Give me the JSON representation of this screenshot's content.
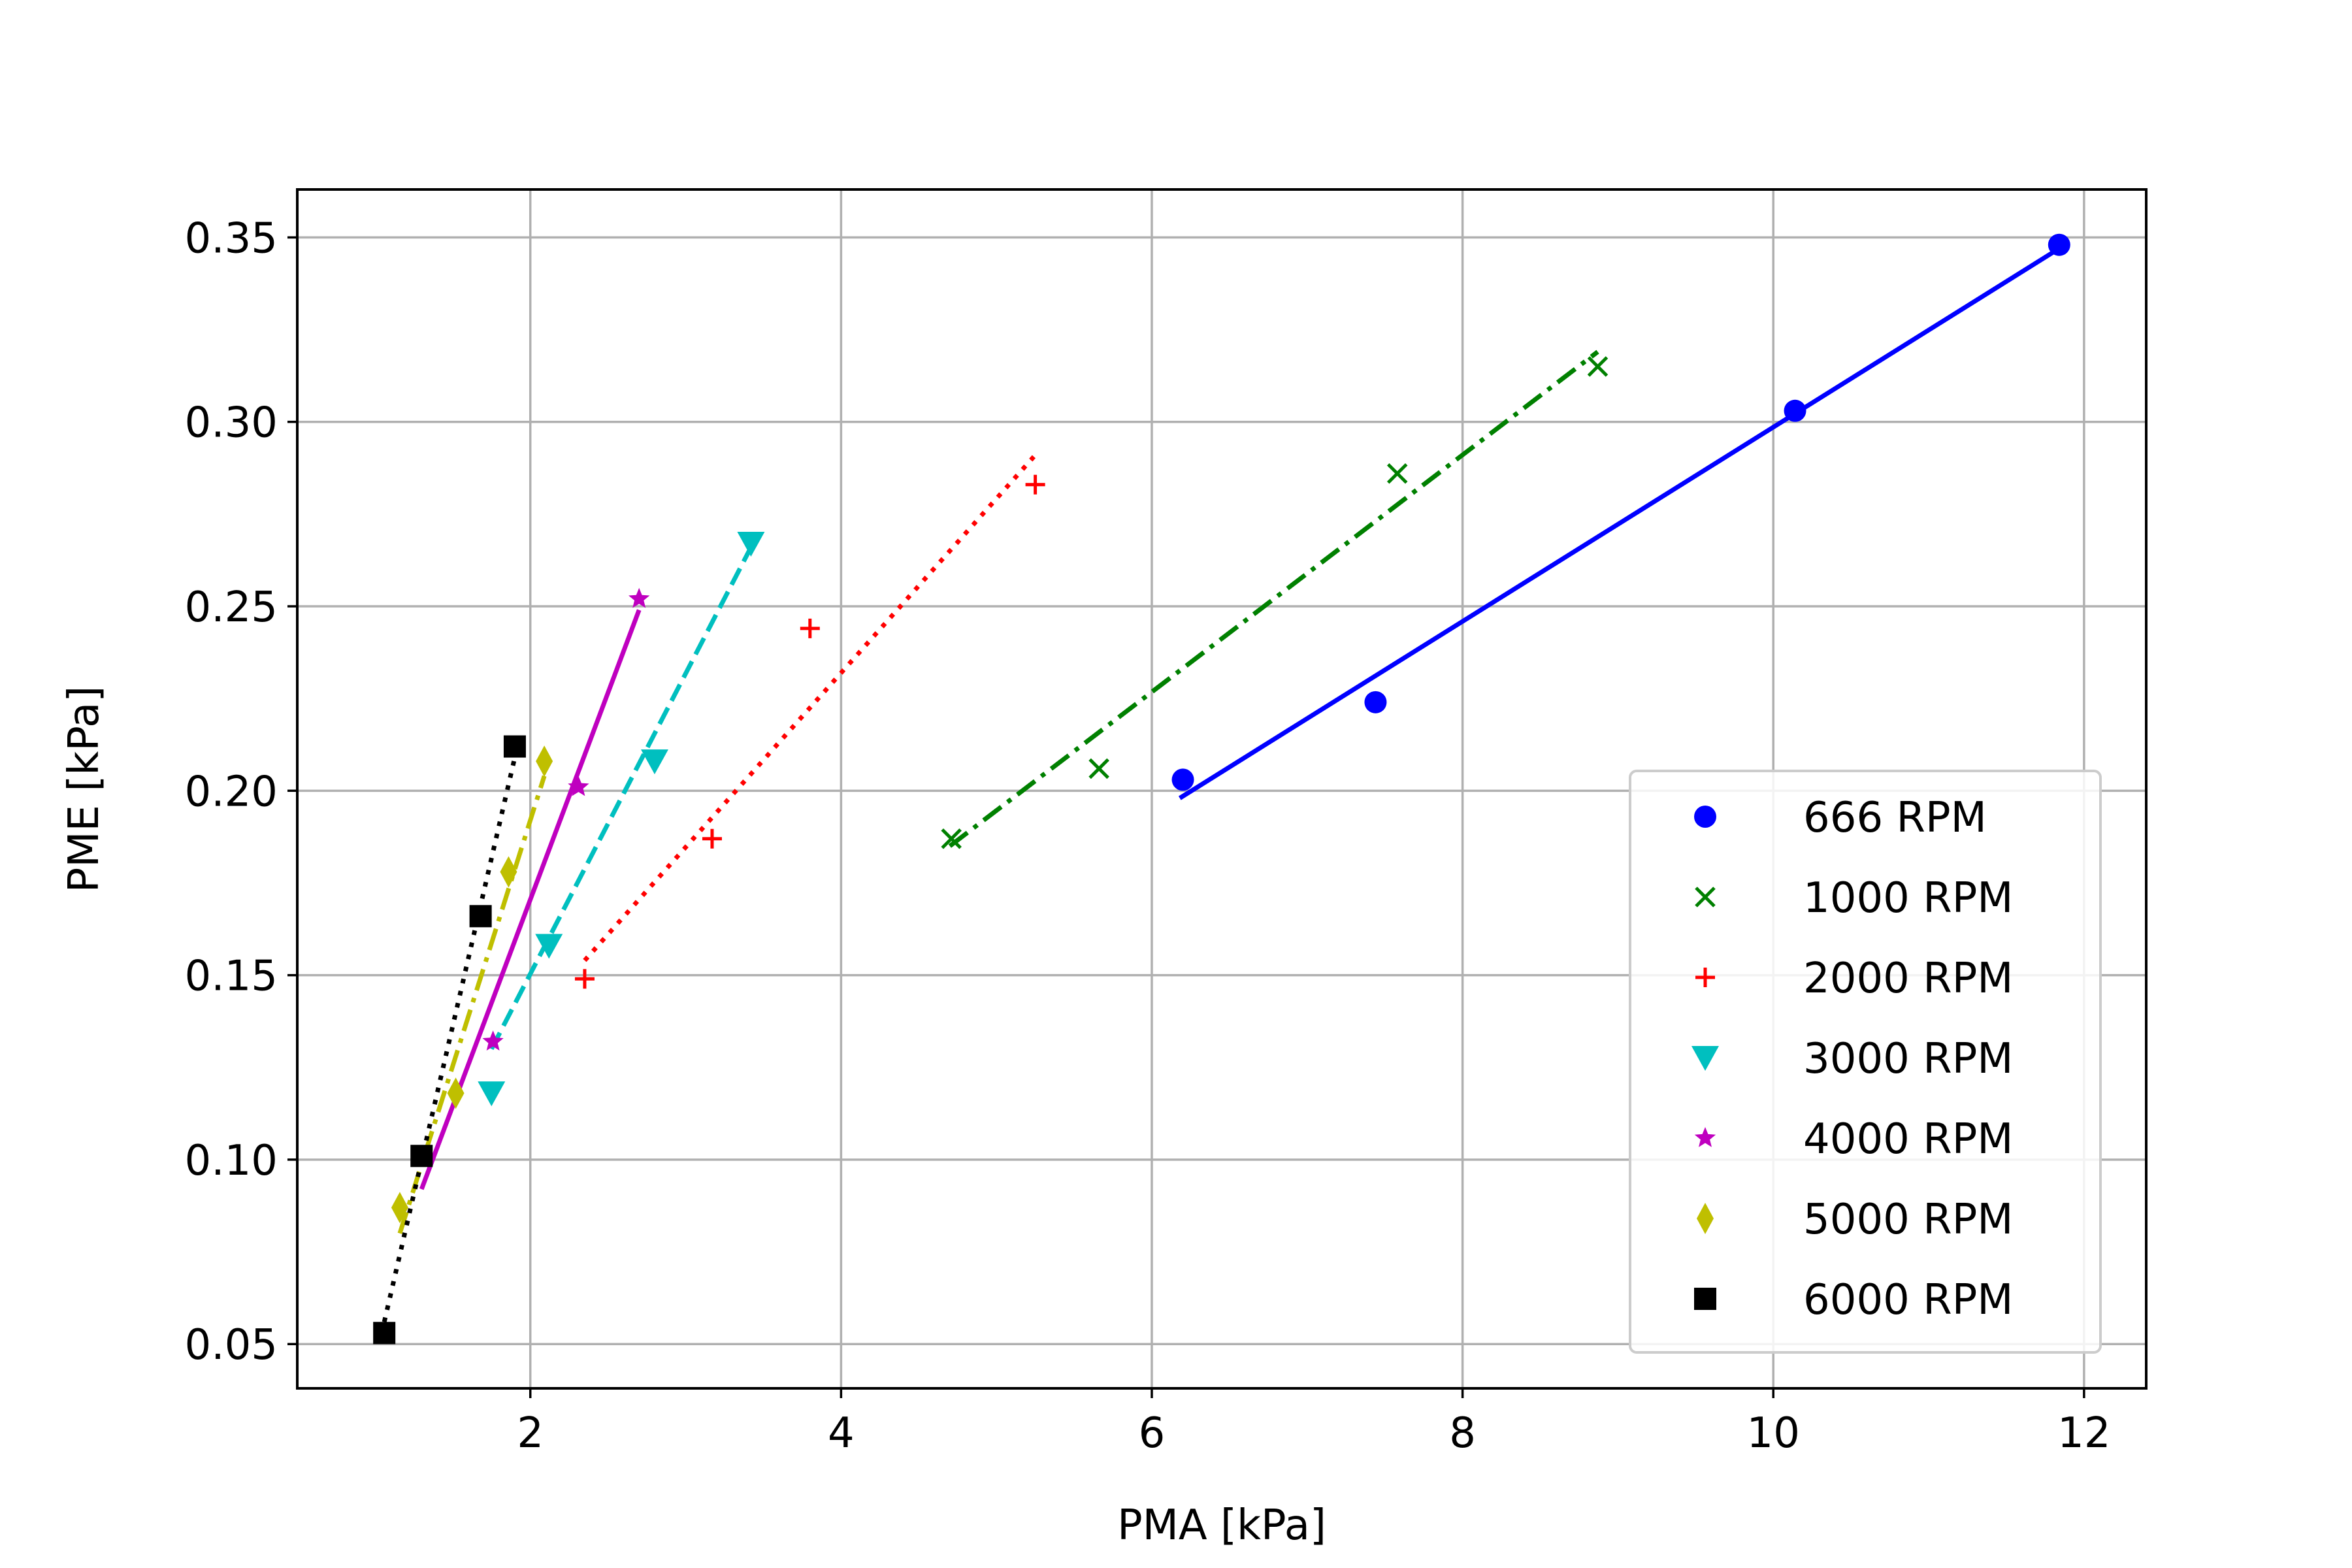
{
  "chart_data": {
    "type": "scatter",
    "title": "",
    "xlabel": "PMA [kPa]",
    "ylabel": "PME [kPa]",
    "xlim": [
      0.5,
      12.4
    ],
    "ylim": [
      0.038,
      0.363
    ],
    "xticks": [
      2,
      4,
      6,
      8,
      10,
      12
    ],
    "yticks": [
      0.05,
      0.1,
      0.15,
      0.2,
      0.25,
      0.3,
      0.35
    ],
    "xtick_labels": [
      "2",
      "4",
      "6",
      "8",
      "10",
      "12"
    ],
    "ytick_labels": [
      "0.05",
      "0.10",
      "0.15",
      "0.20",
      "0.25",
      "0.30",
      "0.35"
    ],
    "grid": true,
    "legend_position": "lower-right",
    "series": [
      {
        "name": "666 RPM",
        "color": "#0000ff",
        "marker": "circle",
        "line_style": "solid",
        "points": [
          [
            6.2,
            0.203
          ],
          [
            7.44,
            0.224
          ],
          [
            10.14,
            0.303
          ],
          [
            11.84,
            0.348
          ]
        ],
        "fit": [
          [
            6.18,
            0.198
          ],
          [
            11.84,
            0.347
          ]
        ]
      },
      {
        "name": "1000 RPM",
        "color": "#008000",
        "marker": "x",
        "line_style": "dashdot",
        "points": [
          [
            4.71,
            0.187
          ],
          [
            5.66,
            0.206
          ],
          [
            7.58,
            0.286
          ],
          [
            8.87,
            0.315
          ]
        ],
        "fit": [
          [
            4.7,
            0.185
          ],
          [
            8.87,
            0.319
          ]
        ]
      },
      {
        "name": "2000 RPM",
        "color": "#ff0000",
        "marker": "plus",
        "line_style": "dotted",
        "points": [
          [
            2.35,
            0.149
          ],
          [
            3.17,
            0.187
          ],
          [
            3.8,
            0.244
          ],
          [
            5.25,
            0.283
          ]
        ],
        "fit": [
          [
            2.35,
            0.154
          ],
          [
            5.25,
            0.291
          ]
        ]
      },
      {
        "name": "3000 RPM",
        "color": "#00bfbf",
        "marker": "triangle-down",
        "line_style": "dashed",
        "points": [
          [
            1.75,
            0.118
          ],
          [
            2.12,
            0.158
          ],
          [
            2.8,
            0.208
          ],
          [
            3.42,
            0.267
          ]
        ],
        "fit": [
          [
            1.75,
            0.13
          ],
          [
            3.42,
            0.266
          ]
        ]
      },
      {
        "name": "4000 RPM",
        "color": "#bf00bf",
        "marker": "star",
        "line_style": "solid",
        "points": [
          [
            1.76,
            0.132
          ],
          [
            2.31,
            0.201
          ],
          [
            2.7,
            0.252
          ]
        ],
        "fit": [
          [
            1.3,
            0.092
          ],
          [
            2.7,
            0.249
          ]
        ]
      },
      {
        "name": "5000 RPM",
        "color": "#bfbf00",
        "marker": "thin-diamond",
        "line_style": "dashdot",
        "points": [
          [
            1.16,
            0.087
          ],
          [
            1.52,
            0.118
          ],
          [
            1.86,
            0.178
          ],
          [
            2.09,
            0.208
          ]
        ],
        "fit": [
          [
            1.16,
            0.08
          ],
          [
            2.09,
            0.204
          ]
        ]
      },
      {
        "name": "6000 RPM",
        "color": "#000000",
        "marker": "square",
        "line_style": "dotted",
        "points": [
          [
            1.06,
            0.053
          ],
          [
            1.3,
            0.101
          ],
          [
            1.68,
            0.166
          ],
          [
            1.9,
            0.212
          ]
        ],
        "fit": [
          [
            1.06,
            0.056
          ],
          [
            1.9,
            0.209
          ]
        ]
      }
    ]
  }
}
